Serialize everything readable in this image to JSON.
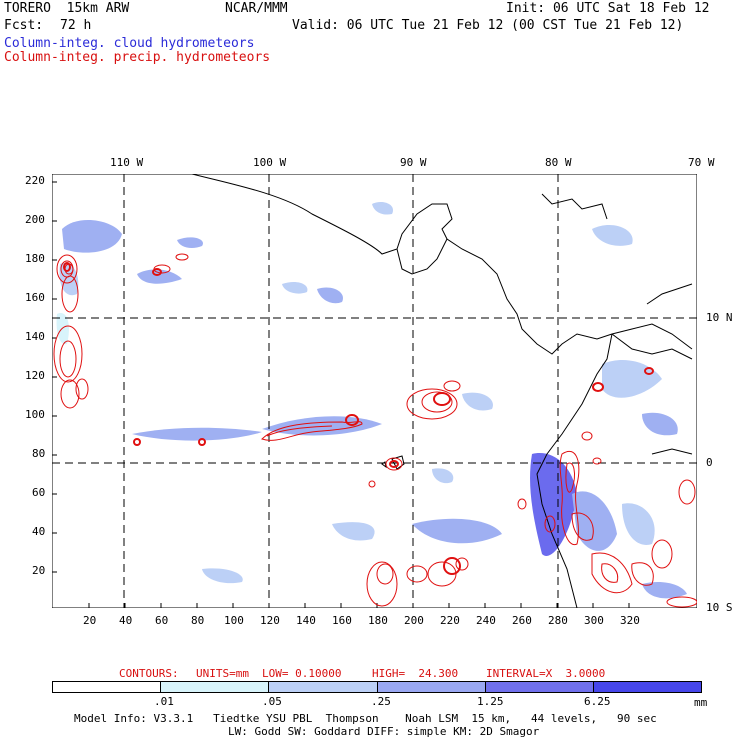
{
  "header": {
    "model": "TORERO  15km ARW",
    "center": "NCAR/MMM",
    "init": "Init: 06 UTC Sat 18 Feb 12",
    "fcst_label": "Fcst:",
    "fcst_value": "72 h",
    "valid": "Valid: 06 UTC Tue 21 Feb 12 (00 CST Tue 21 Feb 12)",
    "field1": "Column-integ. cloud hydrometeors",
    "field2": "Column-integ. precip. hydrometeors"
  },
  "colors": {
    "field1": "#2b2bd8",
    "field2": "#d81010",
    "shade_light": "#d8f4fb",
    "shade_mid": "#9fb0f2",
    "shade_dark": "#6b6bee",
    "contour": "#e01010",
    "land": "#ffffff"
  },
  "map": {
    "top_lon_labels": [
      "110 W",
      "100 W",
      "90 W",
      "80 W",
      "70 W"
    ],
    "right_lat_labels": [
      "10 N",
      "0",
      "10 S"
    ],
    "left_y_ticks": [
      "220",
      "200",
      "180",
      "160",
      "140",
      "120",
      "100",
      "80",
      "60",
      "40",
      "20"
    ],
    "bottom_x_ticks": [
      "20",
      "40",
      "60",
      "80",
      "100",
      "120",
      "140",
      "160",
      "180",
      "200",
      "220",
      "240",
      "260",
      "280",
      "300",
      "320"
    ]
  },
  "contours": {
    "label": "CONTOURS:",
    "units": "UNITS=mm",
    "low": "LOW= 0.10000",
    "high": "HIGH=  24.300",
    "interval": "INTERVAL=X  3.0000"
  },
  "legend": {
    "levels": [
      ".01",
      ".05",
      ".25",
      "1.25",
      "6.25"
    ],
    "units": "mm",
    "colors": [
      "#ffffff",
      "#d8f4fb",
      "#bcd0f6",
      "#9aa8f2",
      "#7070ec",
      "#4646ea",
      "#2020e4"
    ]
  },
  "footer": {
    "line1": "Model Info: V3.3.1   Tiedtke YSU PBL  Thompson    Noah LSM  15 km,   44 levels,   90 sec",
    "line2": "LW: Godd SW: Goddard DIFF: simple KM: 2D Smagor"
  }
}
